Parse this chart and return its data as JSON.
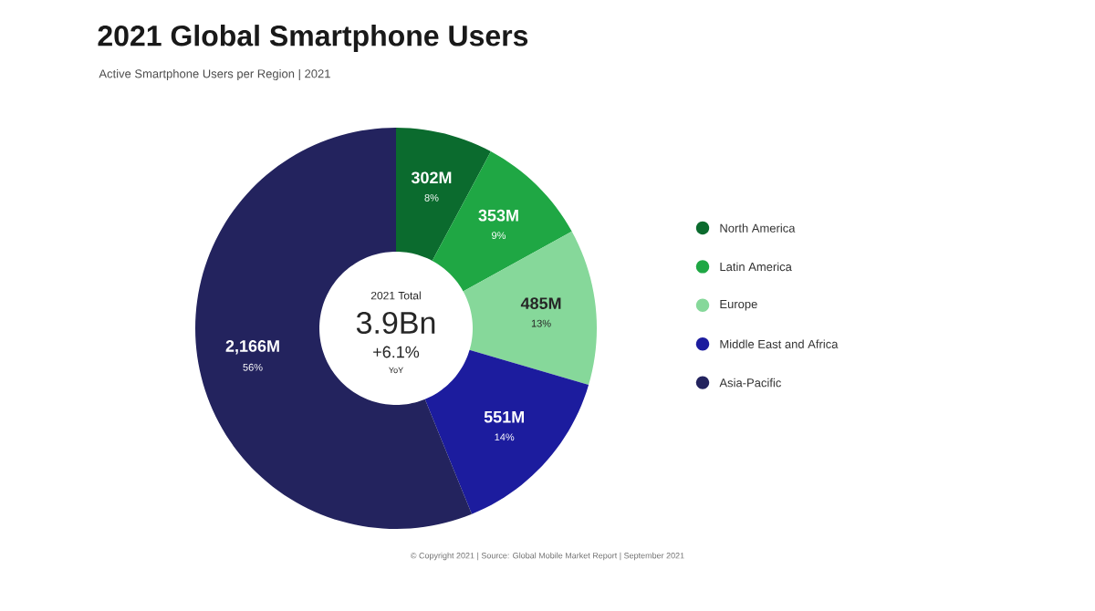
{
  "chart_data": {
    "type": "donut",
    "title": "2021 Global Smartphone Users",
    "subtitle": "Active Smartphone Users per Region | 2021",
    "categories": [
      "North America",
      "Latin America",
      "Europe",
      "Middle East and Africa",
      "Asia-Pacific"
    ],
    "values": [
      302,
      353,
      485,
      551,
      2166
    ],
    "colors": [
      "#0b6b2e",
      "#1fa744",
      "#86d89a",
      "#1c1c9e",
      "#23235e"
    ],
    "value_labels": [
      "302M",
      "353M",
      "485M",
      "551M",
      "2,166M"
    ],
    "legend": "right",
    "annotations": [
      {
        "text": "8%",
        "x": "North America"
      },
      {
        "text": "9%",
        "x": "Latin America"
      },
      {
        "text": "13%",
        "x": "Europe"
      },
      {
        "text": "14%",
        "x": "Middle East and Africa"
      },
      {
        "text": "56%",
        "x": "Asia-Pacific"
      },
      "2021 Total",
      "3.9Bn",
      "+6.1%",
      "YoY",
      "© Copyright 2021 | Source: Global Mobile Market Report | September 2021"
    ]
  }
}
